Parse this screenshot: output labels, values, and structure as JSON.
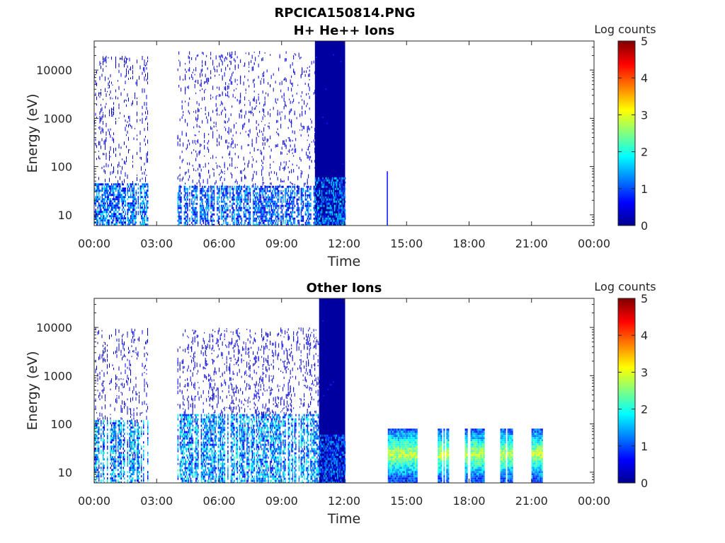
{
  "figure_title": "RPCICA150814.PNG",
  "colors": {
    "axis": "#262626",
    "background": "#ffffff",
    "colormap": [
      "#00008f",
      "#0000ff",
      "#0080ff",
      "#00ffff",
      "#80ff80",
      "#ffff00",
      "#ff8000",
      "#ff0000",
      "#800000"
    ]
  },
  "chart_data": [
    {
      "type": "heatmap",
      "title": "H+ He++ Ions",
      "xlabel": "Time",
      "ylabel": "Energy (eV)",
      "yscale": "log",
      "xlim": [
        "00:00",
        "24:00"
      ],
      "ylim": [
        6,
        40000
      ],
      "x_ticks": [
        "00:00",
        "03:00",
        "06:00",
        "09:00",
        "12:00",
        "15:00",
        "18:00",
        "21:00",
        "00:00"
      ],
      "y_ticks": [
        {
          "value": 10,
          "label": "10"
        },
        {
          "value": 100,
          "label": "100"
        },
        {
          "value": 1000,
          "label": "1000"
        },
        {
          "value": 10000,
          "label": "10000"
        }
      ],
      "colorbar": {
        "label": "Log counts",
        "min": 0,
        "max": 5,
        "ticks": [
          "0",
          "1",
          "2",
          "3",
          "4",
          "5"
        ]
      },
      "segments": [
        {
          "start_h": 0.0,
          "end_h": 2.6,
          "pattern": "sparse",
          "emax": 20000,
          "dense_emax": 45,
          "dense_level": 1.6,
          "sparse_level": 0.5
        },
        {
          "start_h": 4.0,
          "end_h": 10.6,
          "pattern": "sparse",
          "emax": 25000,
          "dense_emax": 40,
          "dense_level": 1.5,
          "sparse_level": 0.5
        },
        {
          "start_h": 10.6,
          "end_h": 12.05,
          "pattern": "saturated",
          "emax": 40000,
          "dense_emax": 60,
          "dense_level": 1.6,
          "sparse_level": 0.2
        },
        {
          "start_h": 14.05,
          "end_h": 14.1,
          "pattern": "spike",
          "emax": 80,
          "dense_emax": 80,
          "dense_level": 0.4,
          "sparse_level": 0.4
        }
      ]
    },
    {
      "type": "heatmap",
      "title": "Other Ions",
      "xlabel": "Time",
      "ylabel": "Energy (eV)",
      "yscale": "log",
      "xlim": [
        "00:00",
        "24:00"
      ],
      "ylim": [
        6,
        40000
      ],
      "x_ticks": [
        "00:00",
        "03:00",
        "06:00",
        "09:00",
        "12:00",
        "15:00",
        "18:00",
        "21:00",
        "00:00"
      ],
      "y_ticks": [
        {
          "value": 10,
          "label": "10"
        },
        {
          "value": 100,
          "label": "100"
        },
        {
          "value": 1000,
          "label": "1000"
        },
        {
          "value": 10000,
          "label": "10000"
        }
      ],
      "colorbar": {
        "label": "Log counts",
        "min": 0,
        "max": 5,
        "ticks": [
          "0",
          "1",
          "2",
          "3",
          "4",
          "5"
        ]
      },
      "segments": [
        {
          "start_h": 0.0,
          "end_h": 2.6,
          "pattern": "sparse",
          "emax": 10000,
          "dense_emax": 120,
          "dense_level": 1.9,
          "sparse_level": 0.5
        },
        {
          "start_h": 4.0,
          "end_h": 10.8,
          "pattern": "sparse",
          "emax": 10000,
          "dense_emax": 160,
          "dense_level": 1.9,
          "sparse_level": 0.5
        },
        {
          "start_h": 10.8,
          "end_h": 12.05,
          "pattern": "saturated",
          "emax": 40000,
          "dense_emax": 60,
          "dense_level": 1.4,
          "sparse_level": 0.2
        },
        {
          "start_h": 14.1,
          "end_h": 15.5,
          "pattern": "block",
          "emax": 80,
          "dense_emax": 80,
          "dense_level": 2.8,
          "sparse_level": 1.0
        },
        {
          "start_h": 16.5,
          "end_h": 17.0,
          "pattern": "block",
          "emax": 80,
          "dense_emax": 80,
          "dense_level": 2.8,
          "sparse_level": 1.0
        },
        {
          "start_h": 17.8,
          "end_h": 18.7,
          "pattern": "block",
          "emax": 80,
          "dense_emax": 80,
          "dense_level": 2.8,
          "sparse_level": 1.0
        },
        {
          "start_h": 19.5,
          "end_h": 20.1,
          "pattern": "block",
          "emax": 80,
          "dense_emax": 80,
          "dense_level": 2.8,
          "sparse_level": 1.0
        },
        {
          "start_h": 21.0,
          "end_h": 21.5,
          "pattern": "block",
          "emax": 80,
          "dense_emax": 80,
          "dense_level": 2.8,
          "sparse_level": 1.0
        }
      ]
    }
  ]
}
